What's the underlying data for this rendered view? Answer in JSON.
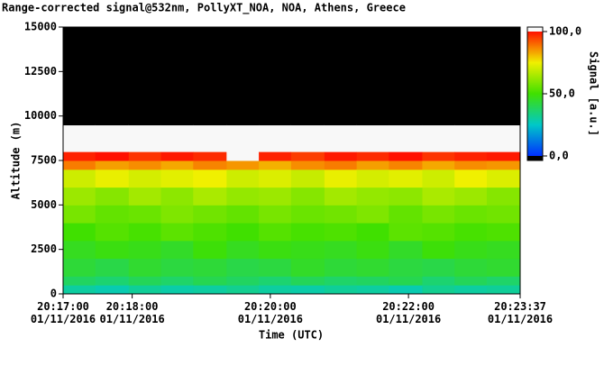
{
  "chart_data": {
    "type": "heatmap",
    "title": "Range-corrected signal@532nm, PollyXT_NOA, NOA, Athens, Greece",
    "x_label": "Time (UTC)",
    "y_label": "Altitude (m)",
    "colorbar_label": "Signal [a.u.]",
    "xlim": [
      73020,
      73417
    ],
    "xticks": [
      {
        "value": 73020,
        "label": "20:17:00\n01/11/2016"
      },
      {
        "value": 73080,
        "label": "20:18:00\n01/11/2016"
      },
      {
        "value": 73200,
        "label": "20:20:00\n01/11/2016"
      },
      {
        "value": 73320,
        "label": "20:22:00\n01/11/2016"
      },
      {
        "value": 73417,
        "label": "20:23:37\n01/11/2016"
      }
    ],
    "ylim": [
      0,
      15000
    ],
    "yticks": [
      0,
      2500,
      5000,
      7500,
      10000,
      12500,
      15000
    ],
    "clim": [
      0,
      100
    ],
    "cticks": [
      {
        "value": 0,
        "label": "0,0"
      },
      {
        "value": 50,
        "label": "50,0"
      },
      {
        "value": 100,
        "label": "100,0"
      }
    ],
    "xbins": [
      73020,
      73048,
      73077,
      73105,
      73133,
      73162,
      73190,
      73218,
      73247,
      73275,
      73303,
      73332,
      73360,
      73388,
      73417
    ],
    "ybins": [
      0,
      500,
      1000,
      2000,
      3000,
      4000,
      5000,
      6000,
      7000,
      7500,
      8000,
      9500,
      15000
    ],
    "values": [
      [
        30,
        38,
        43,
        46,
        50,
        58,
        63,
        70,
        88,
        98,
        115,
        -10
      ],
      [
        28,
        36,
        41,
        48,
        53,
        55,
        60,
        74,
        84,
        100,
        115,
        -10
      ],
      [
        31,
        39,
        44,
        47,
        51,
        56,
        64,
        71,
        86,
        96,
        115,
        -10
      ],
      [
        29,
        37,
        42,
        45,
        54,
        59,
        61,
        73,
        83,
        99,
        115,
        -10
      ],
      [
        30,
        40,
        43,
        49,
        52,
        57,
        65,
        75,
        87,
        97,
        115,
        -10
      ],
      [
        32,
        38,
        41,
        46,
        50,
        55,
        62,
        70,
        85,
        101,
        115,
        -10
      ],
      [
        30,
        36,
        42,
        48,
        53,
        58,
        63,
        72,
        82,
        98,
        115,
        -10
      ],
      [
        29,
        39,
        45,
        47,
        51,
        56,
        60,
        69,
        86,
        95,
        115,
        -10
      ],
      [
        31,
        37,
        43,
        46,
        52,
        57,
        64,
        74,
        88,
        99,
        115,
        -10
      ],
      [
        30,
        38,
        44,
        48,
        50,
        59,
        62,
        71,
        84,
        97,
        115,
        -10
      ],
      [
        28,
        40,
        42,
        45,
        54,
        55,
        61,
        73,
        87,
        100,
        115,
        -10
      ],
      [
        32,
        36,
        41,
        49,
        53,
        58,
        65,
        70,
        83,
        96,
        115,
        -10
      ],
      [
        30,
        39,
        43,
        47,
        51,
        56,
        63,
        75,
        86,
        98,
        115,
        -10
      ],
      [
        31,
        37,
        44,
        46,
        52,
        57,
        60,
        72,
        85,
        99,
        115,
        -10
      ]
    ]
  }
}
